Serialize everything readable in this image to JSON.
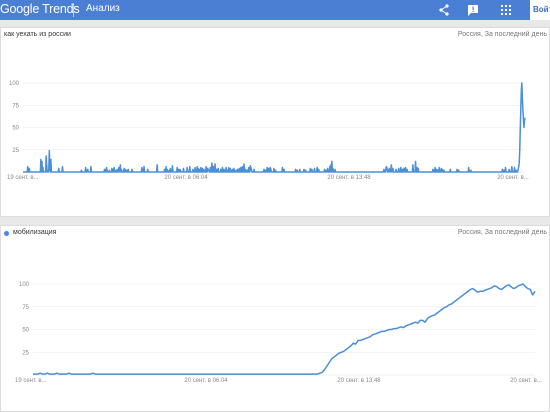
{
  "header": {
    "logo": "Google Trends",
    "section": "Анализ",
    "login_label": "Войти",
    "accent_color": "#4a7fd4"
  },
  "icons": [
    "share-icon",
    "feedback-icon",
    "apps-grid-icon"
  ],
  "panel1": {
    "query": "как уехать из россии",
    "meta": "Россия, За последний день"
  },
  "panel2": {
    "query": "мобилизация",
    "meta": "Россия, За последний день",
    "dot_color": "#4285f4"
  },
  "chart_data": [
    {
      "type": "line",
      "title": "как уехать из россии",
      "ylim": [
        0,
        100
      ],
      "yticks": [
        "25",
        "50",
        "75",
        "100"
      ],
      "xticks": [
        "19 сент. в...",
        "20 сент. в 06:04",
        "20 сент. в 13:48",
        "20 сент. в..."
      ],
      "series": [
        {
          "color": "#4a8fd8",
          "values": [
            0,
            0,
            0,
            0,
            0,
            0,
            0,
            0,
            0,
            6,
            0,
            0,
            4,
            0,
            0,
            0,
            0,
            0,
            0,
            0,
            0,
            0,
            0,
            0,
            0,
            0,
            0,
            0,
            0,
            0,
            0,
            0,
            0,
            0,
            14,
            0,
            12,
            0,
            5,
            0,
            0,
            0,
            0,
            0,
            18,
            8,
            0,
            0,
            0,
            3,
            24,
            3,
            0,
            14,
            0,
            0,
            0,
            0,
            0,
            0,
            0,
            0,
            0,
            0,
            0,
            0,
            0,
            0,
            4,
            0,
            0,
            0,
            0,
            0,
            0,
            6,
            0,
            0,
            0,
            0,
            0,
            0,
            0,
            0,
            0,
            0,
            0,
            0,
            0,
            0,
            0,
            0,
            0,
            0,
            0,
            0,
            0,
            0,
            0,
            0,
            0,
            0,
            0,
            0,
            0,
            0,
            0,
            0,
            0,
            0,
            0,
            2,
            0,
            0,
            0,
            0,
            0,
            0,
            0,
            5,
            0,
            0,
            0,
            3,
            0,
            0,
            0,
            0,
            0,
            6,
            0,
            0,
            0,
            0,
            0,
            0,
            0,
            0,
            0,
            0,
            0,
            0,
            0,
            0,
            0,
            0,
            0,
            0,
            0,
            0,
            0,
            0,
            0,
            0,
            0,
            3,
            0,
            3,
            0,
            5,
            0,
            0,
            0,
            0,
            2,
            0,
            0,
            0,
            0,
            4,
            0,
            3,
            0,
            5,
            0,
            2,
            0,
            0,
            0,
            3,
            0,
            0,
            5,
            2,
            0,
            8,
            0,
            3,
            0,
            0,
            0,
            0,
            4,
            0,
            3,
            0,
            0,
            2,
            0,
            0,
            3,
            0,
            0,
            0,
            0,
            0,
            0,
            3,
            0,
            0,
            0,
            0,
            0,
            0,
            0,
            0,
            0,
            0,
            0,
            0,
            0,
            0,
            0,
            0,
            0,
            0,
            5,
            0,
            3,
            0,
            6,
            0,
            0,
            0,
            0,
            0,
            0,
            3,
            0,
            0,
            0,
            0,
            0,
            0,
            0,
            0,
            0,
            0,
            0,
            0,
            0,
            0,
            0,
            0,
            0,
            8,
            0,
            0,
            0,
            0,
            0,
            0,
            0,
            0,
            0,
            0,
            0,
            0,
            0,
            3,
            0,
            0,
            6,
            0,
            3,
            0,
            0,
            0,
            2,
            0,
            4,
            0,
            0,
            0,
            7,
            0,
            0,
            0,
            0,
            0,
            0,
            0,
            0,
            5,
            0,
            3,
            0,
            0,
            3,
            2,
            0,
            0,
            0,
            0,
            0,
            4,
            0,
            0,
            0,
            0,
            0,
            0,
            5,
            0,
            0,
            0,
            0,
            6,
            0,
            0,
            0,
            0,
            0,
            3,
            0,
            0,
            0,
            5,
            0,
            0,
            0,
            6,
            0,
            4,
            0,
            3,
            0,
            0,
            5,
            0,
            0,
            4,
            0,
            0,
            3,
            0,
            0,
            0,
            6,
            0,
            0,
            4,
            3,
            2,
            0,
            0,
            5,
            0,
            0,
            10,
            0,
            0,
            6,
            0,
            0,
            9,
            0,
            0,
            3,
            0,
            0,
            4,
            0,
            0,
            0,
            0,
            3,
            0,
            0,
            5,
            0,
            0,
            3,
            0,
            0,
            0,
            5,
            0,
            0,
            2,
            0,
            5,
            0,
            0,
            4,
            0,
            0,
            0,
            3,
            0,
            0,
            4,
            0,
            0,
            0,
            2,
            0,
            0,
            3,
            0,
            0,
            4,
            0,
            0,
            5,
            0,
            0,
            6,
            0,
            0,
            9,
            0,
            0,
            3,
            0,
            0,
            2,
            0,
            0,
            5,
            0,
            0,
            7,
            5,
            3,
            0,
            0,
            0,
            0,
            3,
            0,
            0,
            0,
            0,
            0,
            0,
            0,
            0,
            0,
            0,
            0,
            0,
            0,
            0,
            0,
            0,
            0,
            0,
            3,
            0,
            0,
            2,
            0,
            0,
            5,
            0,
            0,
            4,
            0,
            0,
            5,
            3,
            0,
            0,
            0,
            0,
            0,
            4,
            0,
            0,
            2,
            0,
            0,
            0,
            0,
            0,
            0,
            0,
            0,
            0,
            0,
            0,
            0,
            5,
            0,
            0,
            3,
            0,
            0,
            0,
            0,
            0,
            0,
            0,
            0,
            0,
            0,
            0,
            0,
            0,
            0,
            0,
            0,
            0,
            0,
            0,
            0,
            0,
            3,
            0,
            0,
            2,
            0,
            0,
            0,
            0,
            3,
            0,
            0,
            0,
            0,
            0,
            0,
            0,
            3,
            0,
            0,
            2,
            0,
            0,
            0,
            0,
            0,
            0,
            0,
            0,
            4,
            0,
            0,
            3,
            0,
            0,
            0,
            0,
            4,
            0,
            0,
            0,
            0,
            5,
            0,
            0,
            3,
            0,
            0,
            0,
            0,
            0,
            0,
            0,
            0,
            0,
            0,
            3,
            0,
            0,
            2,
            0,
            0,
            4,
            0,
            0,
            0,
            6,
            0,
            8,
            0,
            12,
            0,
            4,
            0,
            0,
            0,
            3,
            0,
            0,
            0,
            0,
            0,
            0,
            0,
            0,
            0,
            0,
            0,
            0,
            0,
            0,
            0,
            0,
            0,
            0,
            0,
            0,
            0,
            0,
            0,
            0,
            0,
            0,
            0,
            0,
            0,
            0,
            0,
            0,
            0,
            0,
            0,
            0,
            0,
            0,
            0,
            0,
            0,
            0,
            0,
            0,
            0,
            0,
            0,
            0,
            0,
            0,
            0,
            0,
            0,
            0,
            0,
            0,
            0,
            0,
            0,
            0,
            0,
            0,
            0,
            0,
            0,
            0,
            0,
            0,
            0,
            0,
            0,
            0,
            0,
            0,
            0,
            0,
            0,
            0,
            0,
            0,
            0,
            0,
            0,
            0,
            0,
            0,
            0,
            0,
            0,
            0,
            0,
            0,
            3,
            0,
            0,
            0,
            5,
            6,
            3,
            0,
            0,
            2,
            4,
            0,
            0,
            3,
            8,
            0,
            2,
            4,
            0,
            0,
            0,
            0,
            0,
            3,
            0,
            0,
            0,
            0,
            4,
            0,
            0,
            0,
            5,
            0,
            0,
            3,
            0,
            0,
            4,
            2,
            0,
            5,
            0,
            0,
            3,
            0,
            0,
            0,
            0,
            0,
            0,
            0,
            0,
            0,
            0,
            8,
            0,
            0,
            0,
            0,
            12,
            0,
            0,
            5,
            0,
            4,
            0,
            0,
            0,
            0,
            0,
            0,
            0,
            0,
            0,
            0,
            0,
            0,
            0,
            0,
            0,
            0,
            0,
            0,
            0,
            0,
            0,
            0,
            0,
            0,
            0,
            0,
            0,
            3,
            2,
            0,
            0,
            5,
            0,
            0,
            3,
            0,
            2,
            0,
            0,
            5,
            0,
            0,
            0,
            4,
            0,
            3,
            0,
            0,
            2,
            0,
            0,
            0,
            0,
            0,
            0,
            0,
            0,
            0,
            0,
            0,
            3,
            0,
            0,
            0,
            0,
            0,
            0,
            0,
            0,
            0,
            0,
            0,
            0,
            3,
            0,
            0,
            2,
            0,
            0,
            0,
            0,
            0,
            0,
            0,
            0,
            0,
            0,
            0,
            0,
            0,
            0,
            0,
            0,
            0,
            0,
            5,
            0,
            0,
            0,
            2,
            0,
            0,
            0,
            0,
            0,
            0,
            0,
            0,
            0,
            0,
            0,
            0,
            0,
            0,
            0,
            0,
            0,
            0,
            0,
            0,
            0,
            0,
            0,
            0,
            0,
            0,
            0,
            0,
            0,
            0,
            0,
            0,
            0,
            0,
            0,
            0,
            0,
            0,
            0,
            0,
            0,
            0,
            0,
            0,
            0,
            0,
            0,
            0,
            0,
            0,
            0,
            0,
            0,
            0,
            0,
            0,
            0,
            0,
            0,
            3,
            0,
            0,
            2,
            0,
            0,
            5,
            0,
            0,
            0,
            0,
            0,
            0,
            3,
            0,
            0,
            0,
            0,
            6,
            0,
            0,
            0,
            0,
            5,
            0,
            0,
            2,
            0,
            0,
            0,
            3,
            6,
            10,
            24,
            48,
            70,
            92,
            100,
            82,
            70,
            60,
            50,
            58,
            61
          ]
        }
      ]
    },
    {
      "type": "line",
      "title": "мобилизация",
      "ylim": [
        0,
        100
      ],
      "yticks": [
        "25",
        "50",
        "75",
        "100"
      ],
      "xticks": [
        "19 сент. в...",
        "20 сент. в 06:04",
        "20 сент. в 13:48",
        "20 сент. в..."
      ],
      "series": [
        {
          "color": "#4a8fd8",
          "values": [
            1,
            1,
            1,
            2,
            1,
            1,
            2,
            1,
            1,
            1,
            2,
            1,
            1,
            1,
            1,
            2,
            1,
            1,
            1,
            1,
            1,
            1,
            1,
            1,
            1,
            2,
            1,
            1,
            1,
            1,
            1,
            1,
            1,
            1,
            1,
            1,
            1,
            1,
            1,
            1,
            1,
            1,
            1,
            1,
            1,
            1,
            1,
            1,
            1,
            1,
            1,
            1,
            1,
            1,
            1,
            1,
            1,
            1,
            1,
            1,
            1,
            1,
            1,
            1,
            1,
            1,
            1,
            1,
            1,
            1,
            1,
            1,
            1,
            1,
            1,
            1,
            1,
            1,
            1,
            1,
            1,
            1,
            1,
            1,
            1,
            1,
            1,
            1,
            1,
            1,
            1,
            1,
            1,
            1,
            1,
            1,
            1,
            1,
            1,
            1,
            1,
            1,
            1,
            1,
            1,
            1,
            1,
            1,
            1,
            1,
            1,
            1,
            1,
            1,
            1,
            1,
            1,
            1,
            1,
            1,
            2,
            3,
            6,
            10,
            14,
            18,
            20,
            22,
            24,
            25,
            26,
            28,
            30,
            32,
            35,
            34,
            38,
            38,
            39,
            40,
            41,
            42,
            44,
            45,
            46,
            47,
            48,
            48,
            49,
            50,
            50,
            51,
            51,
            52,
            53,
            52,
            54,
            55,
            56,
            57,
            58,
            57,
            60,
            60,
            58,
            62,
            64,
            65,
            66,
            68,
            70,
            72,
            74,
            75,
            77,
            78,
            80,
            82,
            84,
            86,
            88,
            90,
            92,
            94,
            95,
            93,
            91,
            92,
            92,
            93,
            94,
            95,
            96,
            98,
            97,
            95,
            94,
            96,
            98,
            99,
            97,
            95,
            96,
            98,
            99,
            100,
            97,
            95,
            94,
            88,
            92
          ]
        }
      ]
    }
  ]
}
